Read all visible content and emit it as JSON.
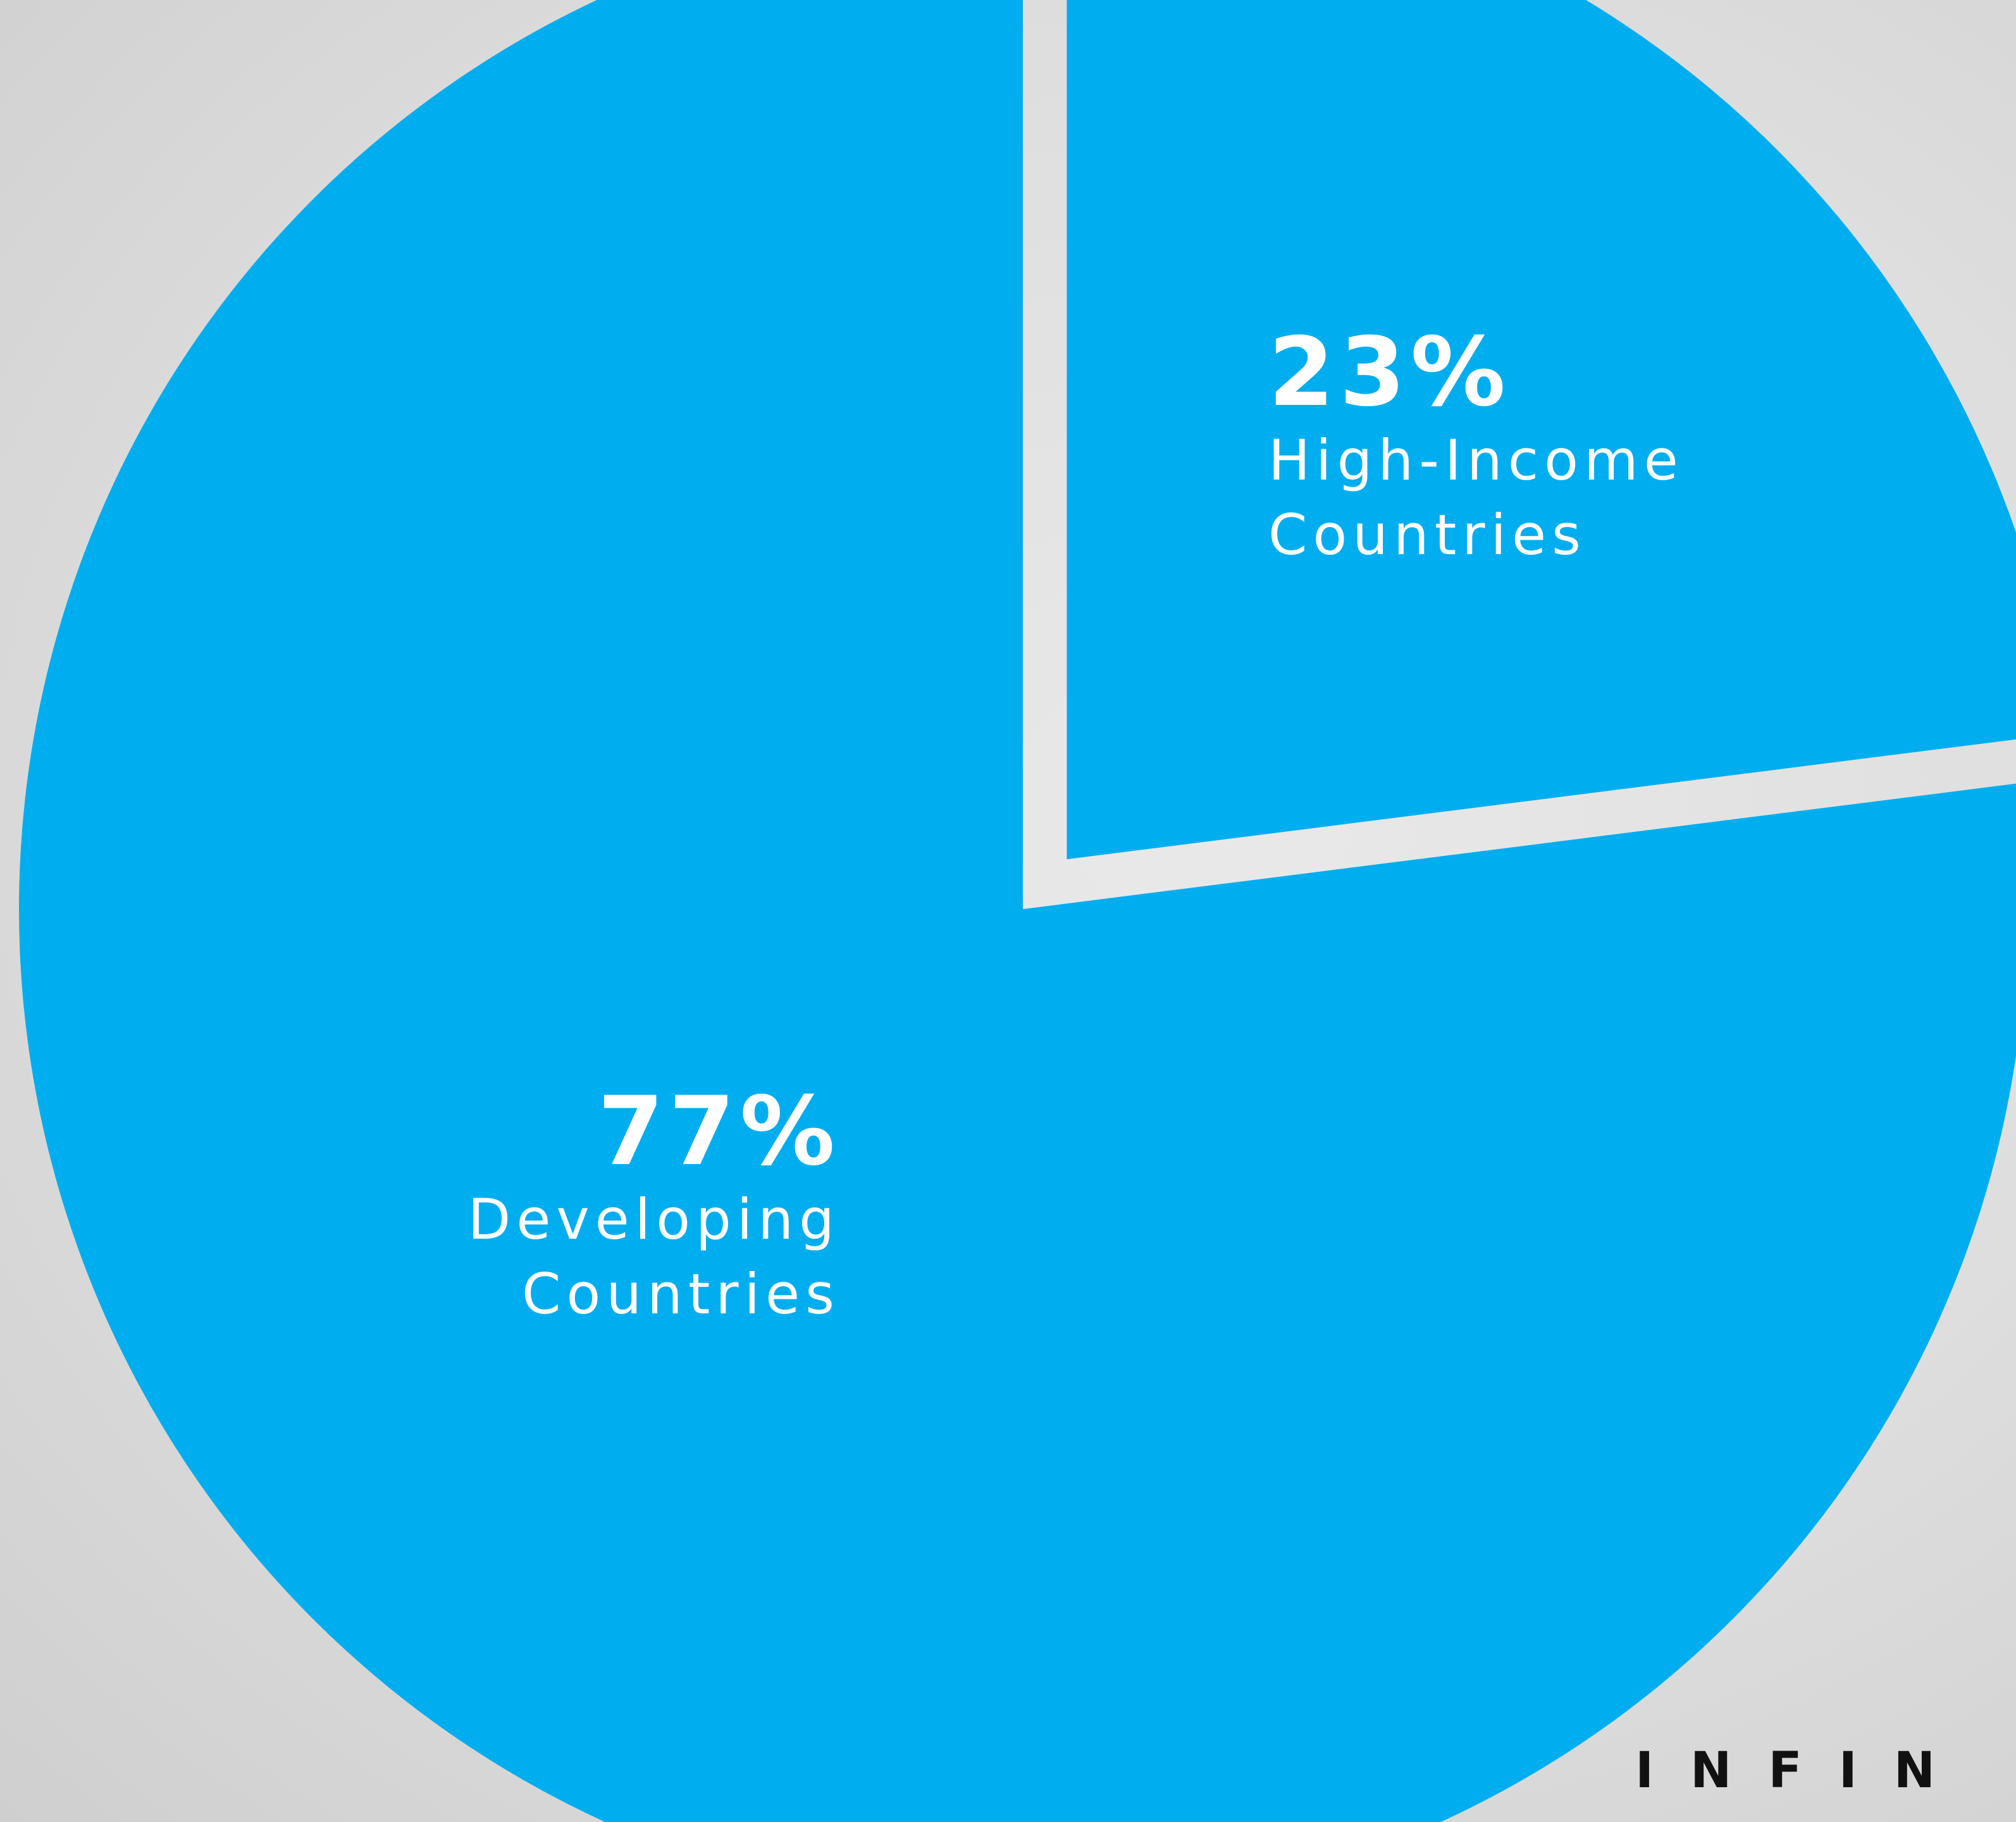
{
  "colors": {
    "slice": "#00AEEF",
    "background": "#dddddd",
    "label": "#ffffff",
    "brand": "#111111"
  },
  "brand_text": "INFIN",
  "chart_data": {
    "type": "pie",
    "slices": [
      {
        "key": "high-income",
        "value": 23,
        "value_label": "23%",
        "label_lines": [
          "High-Income",
          "Countries"
        ],
        "exploded": true
      },
      {
        "key": "developing",
        "value": 77,
        "value_label": "77%",
        "label_lines": [
          "Developing",
          "Countries"
        ],
        "exploded": false
      }
    ]
  }
}
